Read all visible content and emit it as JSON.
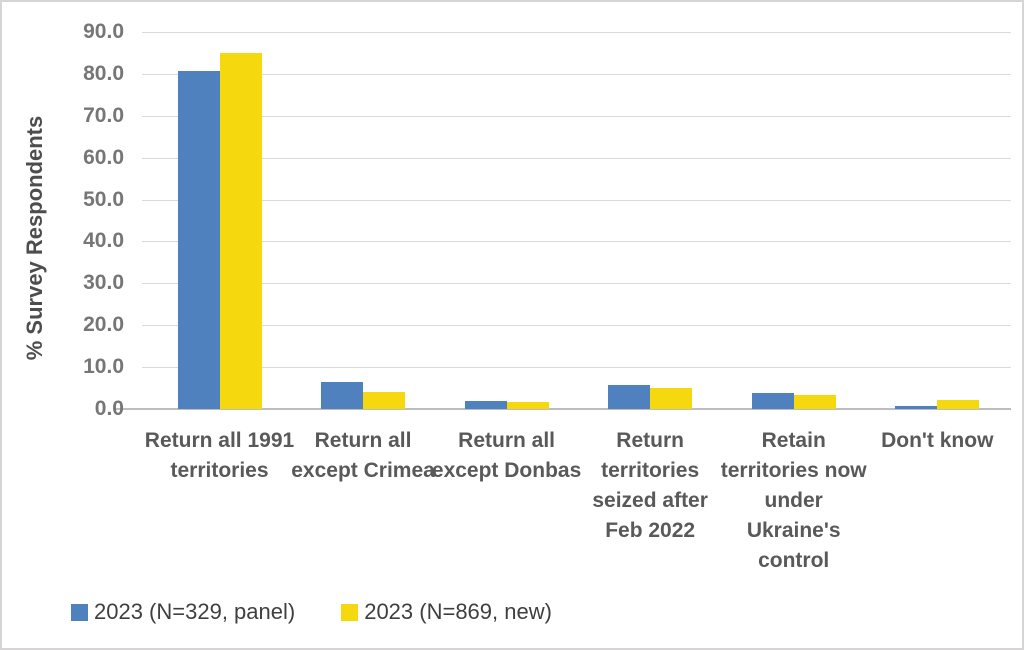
{
  "chart_data": {
    "type": "bar",
    "title": "",
    "xlabel": "",
    "ylabel": "% Survey Respondents",
    "ylim": [
      0,
      90
    ],
    "ytick_step": 10,
    "ytick_decimals": 1,
    "grid": "horizontal",
    "legend_position": "bottom-left",
    "categories": [
      "Return all 1991 territories",
      "Return all except Crimea",
      "Return all except Donbas",
      "Return territories seized after Feb 2022",
      "Retain territories now under Ukraine's control",
      "Don't know"
    ],
    "series": [
      {
        "name": "2023 (N=329, panel)",
        "color": "#4e81bd",
        "values": [
          80.6,
          6.4,
          2.0,
          5.7,
          3.9,
          0.7
        ]
      },
      {
        "name": "2023 (N=869, new)",
        "color": "#f5d80e",
        "values": [
          85.0,
          4.0,
          1.6,
          5.1,
          3.4,
          2.1
        ]
      }
    ]
  },
  "colors": {
    "gridline": "#dadada",
    "axis_line": "#bdbdbd",
    "tick_text": "#767676",
    "category_text": "#595959",
    "legend_text": "#3f3f3f",
    "frame_border": "#d6d4d4",
    "background": "#ffffff"
  }
}
